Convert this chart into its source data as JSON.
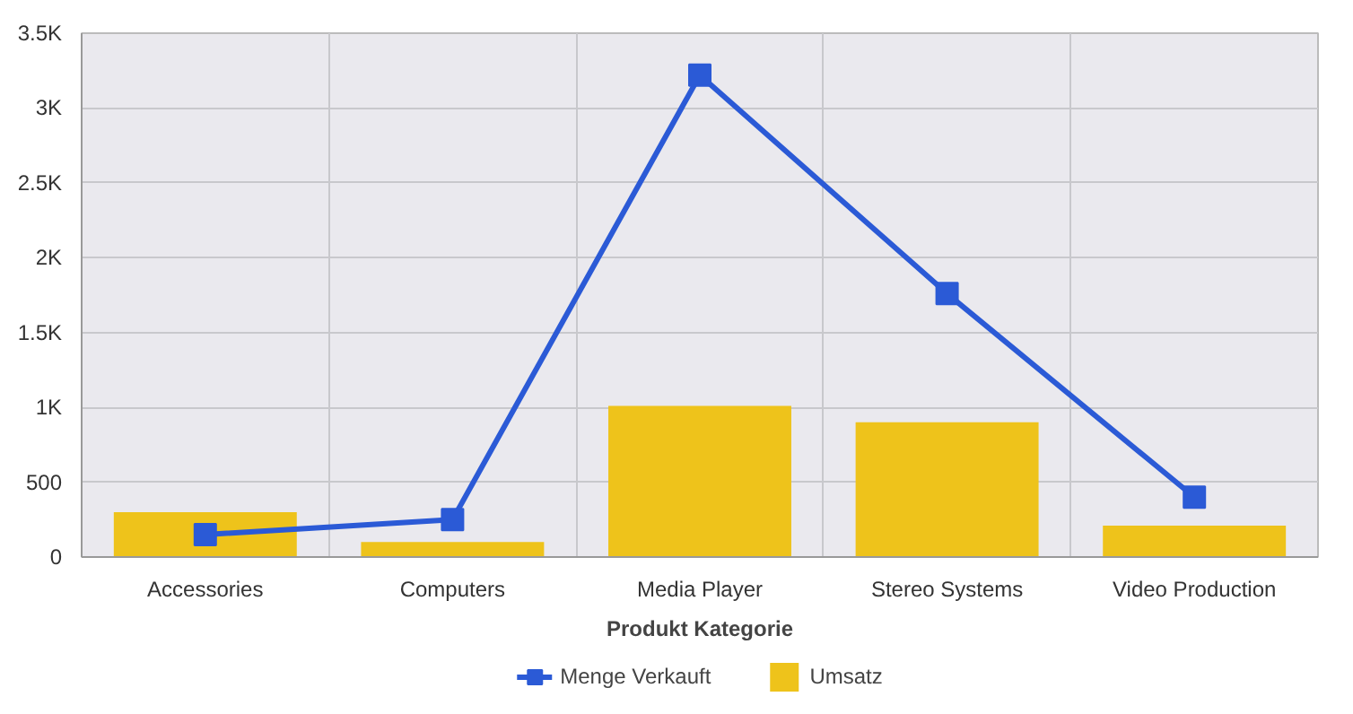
{
  "chart_data": {
    "type": "bar",
    "xlabel": "Produkt Kategorie",
    "categories": [
      "Accessories",
      "Computers",
      "Media Player",
      "Stereo Systems",
      "Video Production"
    ],
    "series": [
      {
        "name": "Menge Verkauft",
        "type": "line",
        "color": "#2b5ad6",
        "values": [
          150,
          250,
          3220,
          1760,
          400
        ],
        "marker": "square"
      },
      {
        "name": "Umsatz",
        "color": "#eec31b",
        "values": [
          300,
          100,
          1010,
          900,
          210
        ]
      }
    ],
    "ylim": [
      0,
      3500
    ],
    "yticks": [
      0,
      500,
      {
        "value": 1000,
        "label": "1K"
      },
      {
        "value": 1500,
        "label": "1.5K"
      },
      {
        "value": 2000,
        "label": "2K"
      },
      {
        "value": 2500,
        "label": "2.5K"
      },
      {
        "value": 3000,
        "label": "3K"
      },
      {
        "value": 3500,
        "label": "3.5K"
      }
    ],
    "grid": true,
    "legend": "bottom"
  }
}
